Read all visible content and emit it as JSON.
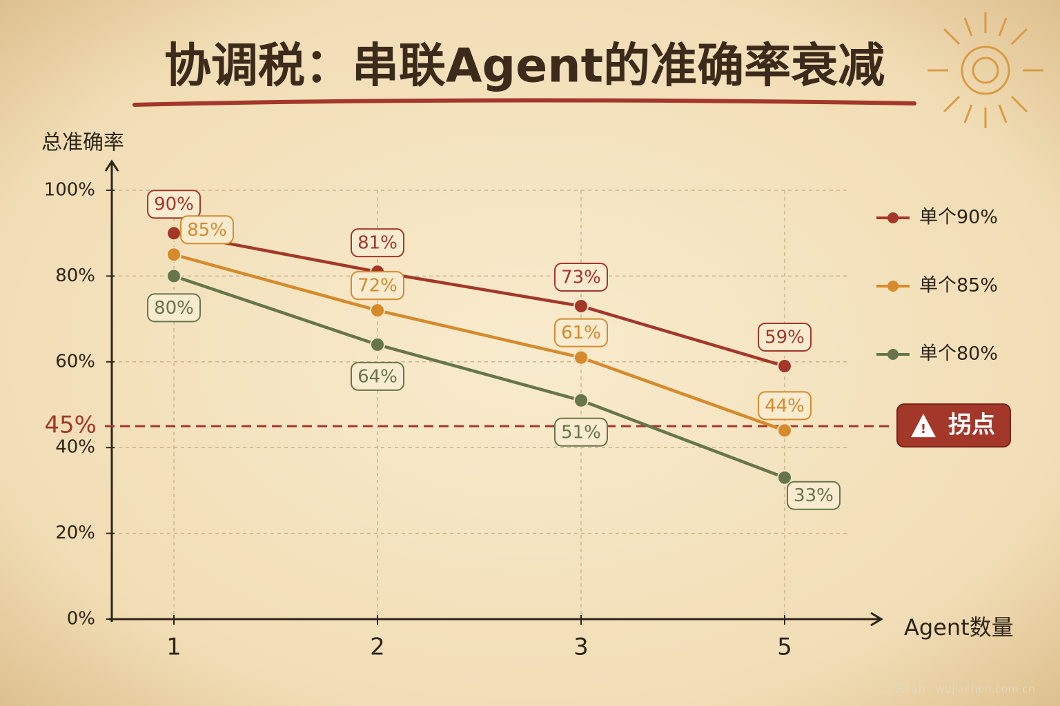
{
  "chart_data": {
    "type": "line",
    "title": "协调税：串联Agent的准确率衰减",
    "y_label": "总准确率",
    "x_label": "Agent数量",
    "categories": [
      "1",
      "2",
      "3",
      "5"
    ],
    "series": [
      {
        "name": "单个90%",
        "color": "#a3372a",
        "values": [
          90,
          81,
          73,
          59
        ],
        "value_labels": [
          "90%",
          "81%",
          "73%",
          "59%"
        ]
      },
      {
        "name": "单个85%",
        "color": "#d68a2c",
        "values": [
          85,
          72,
          61,
          44
        ],
        "value_labels": [
          "85%",
          "72%",
          "61%",
          "44%"
        ]
      },
      {
        "name": "单个80%",
        "color": "#66764a",
        "values": [
          80,
          64,
          51,
          33
        ],
        "value_labels": [
          "80%",
          "64%",
          "51%",
          "33%"
        ]
      }
    ],
    "ylim": [
      0,
      100
    ],
    "yticks": [
      {
        "value": 0,
        "label": "0%"
      },
      {
        "value": 20,
        "label": "20%"
      },
      {
        "value": 40,
        "label": "40%"
      },
      {
        "value": 60,
        "label": "60%"
      },
      {
        "value": 80,
        "label": "80%"
      },
      {
        "value": 100,
        "label": "100%"
      }
    ],
    "threshold": {
      "value": 45,
      "label": "45%",
      "annotation": "拐点"
    },
    "grid": true,
    "legend": "right",
    "watermark": "止语Lab · wujiachen.com.cn"
  }
}
